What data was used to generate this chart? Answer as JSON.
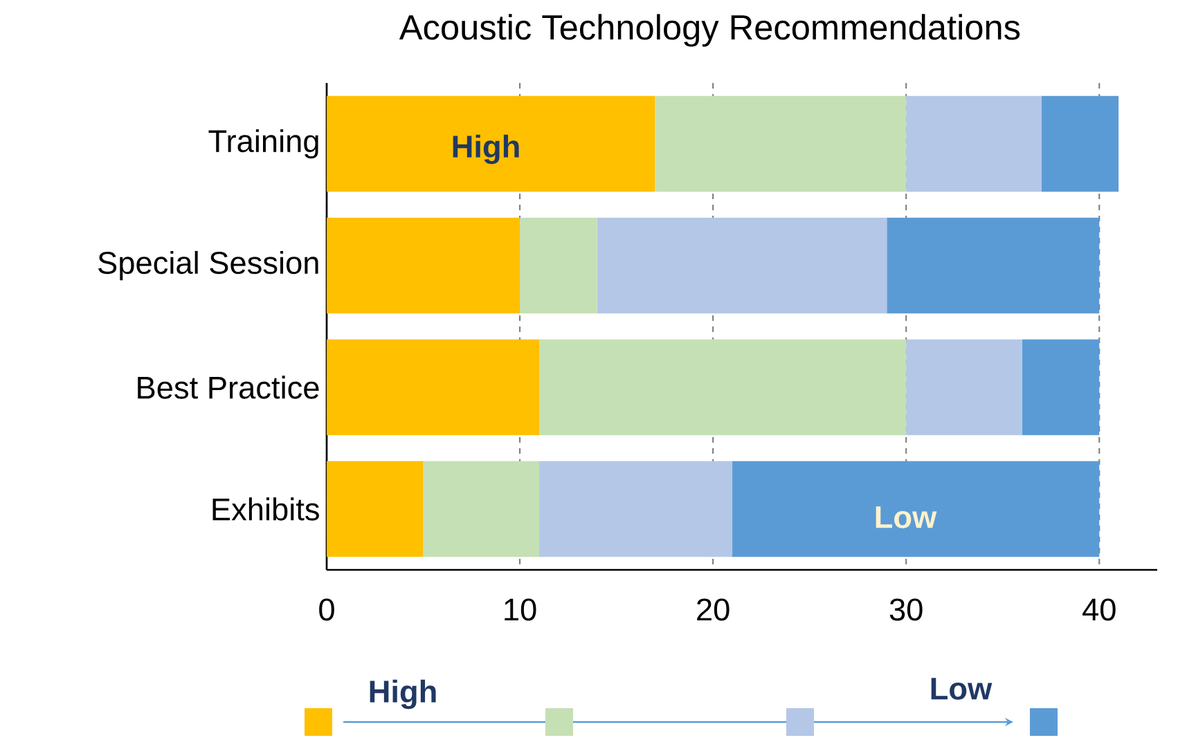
{
  "chart_data": {
    "type": "bar",
    "orientation": "horizontal",
    "stacked": true,
    "title": "Acoustic Technology Recommendations",
    "categories": [
      "Training",
      "Special Session",
      "Best Practice",
      "Exhibits"
    ],
    "series": [
      {
        "color": "#ffc000",
        "values": [
          17,
          10,
          11,
          5
        ]
      },
      {
        "color": "#c5e0b4",
        "values": [
          13,
          4,
          19,
          6
        ]
      },
      {
        "color": "#b4c7e7",
        "values": [
          7,
          15,
          6,
          10
        ]
      },
      {
        "color": "#5b9bd5",
        "values": [
          4,
          11,
          4,
          19
        ]
      }
    ],
    "xlim": [
      0,
      43
    ],
    "xticks": [
      0,
      10,
      20,
      30,
      40
    ],
    "grid": "x",
    "annotations": [
      "High",
      "Low",
      "High",
      "Low"
    ]
  }
}
